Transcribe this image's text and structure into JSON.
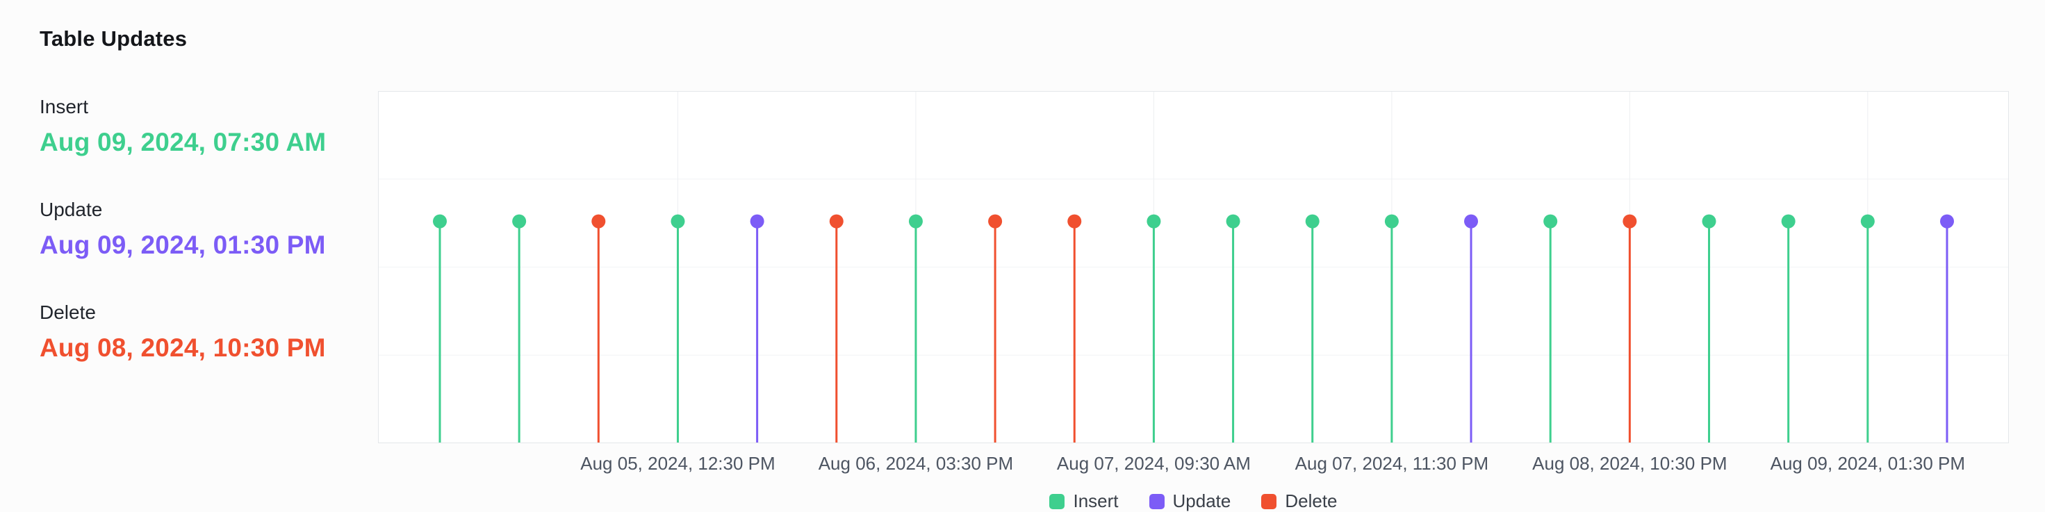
{
  "title": "Table Updates",
  "summary": {
    "insert": {
      "label": "Insert",
      "value": "Aug 09, 2024, 07:30 AM"
    },
    "update": {
      "label": "Update",
      "value": "Aug 09, 2024, 01:30 PM"
    },
    "delete": {
      "label": "Delete",
      "value": "Aug 08, 2024, 10:30 PM"
    }
  },
  "colors": {
    "insert": "#3ECF8E",
    "update": "#7C5CF6",
    "delete": "#F0502F",
    "grid": "#EDEFF1",
    "grid_horizontal": "#F2F4F6",
    "plot_border": "#E4E7EA",
    "plot_background": "#FFFFFF"
  },
  "chart_data": {
    "type": "scatter",
    "subtype": "lollipop-event-timeline",
    "title": "Table Updates",
    "xlabel": "",
    "ylabel": "",
    "grid": true,
    "legend_position": "bottom",
    "marker_height_fraction": 0.37,
    "events": [
      "insert",
      "insert",
      "delete",
      "insert",
      "update",
      "delete",
      "insert",
      "delete",
      "delete",
      "insert",
      "insert",
      "insert",
      "insert",
      "update",
      "insert",
      "delete",
      "insert",
      "insert",
      "insert",
      "update"
    ],
    "x_tick_indices": [
      3,
      6,
      9,
      12,
      15,
      18
    ],
    "x_tick_labels": [
      "Aug 05, 2024, 12:30 PM",
      "Aug 06, 2024, 03:30 PM",
      "Aug 07, 2024, 09:30 AM",
      "Aug 07, 2024, 11:30 PM",
      "Aug 08, 2024, 10:30 PM",
      "Aug 09, 2024, 01:30 PM"
    ],
    "legend": [
      {
        "key": "insert",
        "label": "Insert"
      },
      {
        "key": "update",
        "label": "Update"
      },
      {
        "key": "delete",
        "label": "Delete"
      }
    ]
  }
}
